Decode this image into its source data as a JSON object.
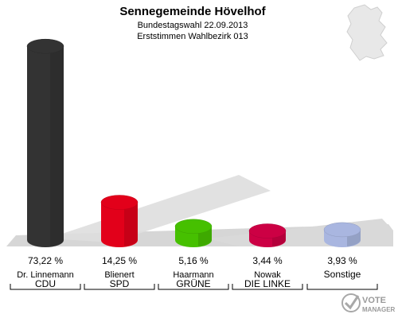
{
  "header": {
    "title": "Sennegemeinde Hövelhof",
    "subtitle1": "Bundestagswahl 22.09.2013",
    "subtitle2": "Erststimmen Wahlbezirk 013"
  },
  "logo": {
    "line1": "VOTE",
    "line2": "MANAGER"
  },
  "icons": {
    "map": "germany-map-icon",
    "logo": "vote-manager-logo-icon"
  },
  "chart_data": {
    "type": "bar",
    "title": "Sennegemeinde Hövelhof",
    "ylim": [
      0,
      80
    ],
    "categories": [
      "CDU",
      "SPD",
      "GRÜNE",
      "DIE LINKE",
      "Sonstige"
    ],
    "candidates": [
      "Dr. Linnemann",
      "Blienert",
      "Haarmann",
      "Nowak",
      ""
    ],
    "values": [
      73.22,
      14.25,
      5.16,
      3.44,
      3.93
    ],
    "labels": [
      "73,22 %",
      "14,25 %",
      "5,16 %",
      "3,44 %",
      "3,93 %"
    ],
    "colors": [
      "#333333",
      "#e2001a",
      "#46c000",
      "#cc0044",
      "#a9b6e0"
    ]
  }
}
